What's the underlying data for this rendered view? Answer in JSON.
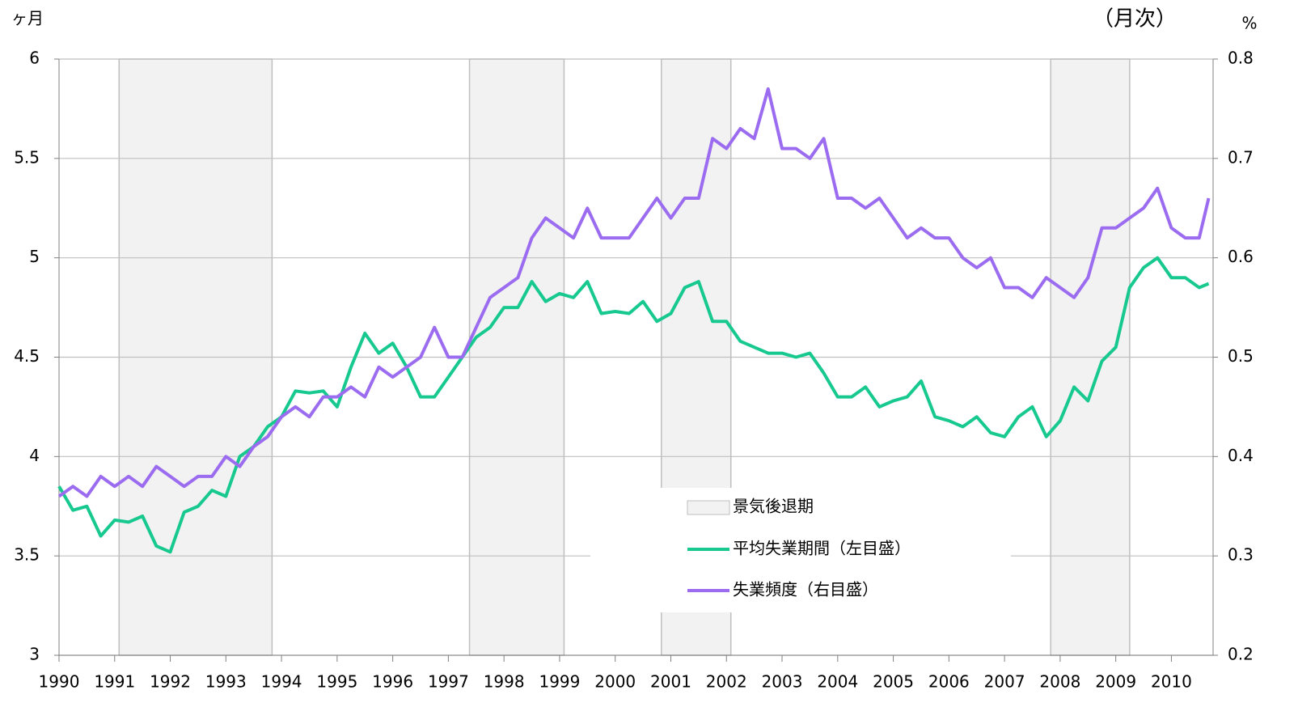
{
  "chart_data": {
    "type": "line",
    "y_unit_label": "ヶ月",
    "frequency_label": "（月次）",
    "y2_unit_label": "%",
    "xlim": [
      1990,
      2010.75
    ],
    "xticks": [
      1990,
      1991,
      1992,
      1993,
      1994,
      1995,
      1996,
      1997,
      1998,
      1999,
      2000,
      2001,
      2002,
      2003,
      2004,
      2005,
      2006,
      2007,
      2008,
      2009,
      2010
    ],
    "ylim": [
      3,
      6
    ],
    "yticks": [
      3,
      3.5,
      4,
      4.5,
      5,
      5.5,
      6
    ],
    "y2lim": [
      0.2,
      0.8
    ],
    "y2ticks": [
      0.2,
      0.3,
      0.4,
      0.5,
      0.6,
      0.7,
      0.8
    ],
    "grid": true,
    "recessions": {
      "name": "景気後退期",
      "color": "#f2f2f2",
      "periods": [
        [
          1991.08,
          1993.83
        ],
        [
          1997.38,
          1999.08
        ],
        [
          2000.83,
          2002.08
        ],
        [
          2007.83,
          2009.25
        ]
      ]
    },
    "x": [
      1990,
      1990.25,
      1990.5,
      1990.75,
      1991,
      1991.25,
      1991.5,
      1991.75,
      1992,
      1992.25,
      1992.5,
      1992.75,
      1993,
      1993.25,
      1993.5,
      1993.75,
      1994,
      1994.25,
      1994.5,
      1994.75,
      1995,
      1995.25,
      1995.5,
      1995.75,
      1996,
      1996.25,
      1996.5,
      1996.75,
      1997,
      1997.25,
      1997.5,
      1997.75,
      1998,
      1998.25,
      1998.5,
      1998.75,
      1999,
      1999.25,
      1999.5,
      1999.75,
      2000,
      2000.25,
      2000.5,
      2000.75,
      2001,
      2001.25,
      2001.5,
      2001.75,
      2002,
      2002.25,
      2002.5,
      2002.75,
      2003,
      2003.25,
      2003.5,
      2003.75,
      2004,
      2004.25,
      2004.5,
      2004.75,
      2005,
      2005.25,
      2005.5,
      2005.75,
      2006,
      2006.25,
      2006.5,
      2006.75,
      2007,
      2007.25,
      2007.5,
      2007.75,
      2008,
      2008.25,
      2008.5,
      2008.75,
      2009,
      2009.25,
      2009.5,
      2009.75,
      2010,
      2010.25,
      2010.5,
      2010.67
    ],
    "series": [
      {
        "name": "平均失業期間（左目盛）",
        "color": "#17c98f",
        "axis": "y",
        "values": [
          3.85,
          3.73,
          3.75,
          3.6,
          3.68,
          3.67,
          3.7,
          3.55,
          3.52,
          3.72,
          3.75,
          3.83,
          3.8,
          4.0,
          4.05,
          4.15,
          4.2,
          4.33,
          4.32,
          4.33,
          4.25,
          4.45,
          4.62,
          4.52,
          4.57,
          4.45,
          4.3,
          4.3,
          4.4,
          4.5,
          4.6,
          4.65,
          4.75,
          4.75,
          4.88,
          4.78,
          4.82,
          4.8,
          4.88,
          4.72,
          4.73,
          4.72,
          4.78,
          4.68,
          4.72,
          4.85,
          4.88,
          4.68,
          4.68,
          4.58,
          4.55,
          4.52,
          4.52,
          4.5,
          4.52,
          4.42,
          4.3,
          4.3,
          4.35,
          4.25,
          4.28,
          4.3,
          4.38,
          4.2,
          4.18,
          4.15,
          4.2,
          4.12,
          4.1,
          4.2,
          4.25,
          4.1,
          4.18,
          4.35,
          4.28,
          4.48,
          4.55,
          4.85,
          4.95,
          5.0,
          4.9,
          4.9,
          4.85,
          4.87
        ]
      },
      {
        "name": "失業頻度（右目盛）",
        "color": "#9b6cf0",
        "axis": "y2",
        "values": [
          0.36,
          0.37,
          0.36,
          0.38,
          0.37,
          0.38,
          0.37,
          0.39,
          0.38,
          0.37,
          0.38,
          0.38,
          0.4,
          0.39,
          0.41,
          0.42,
          0.44,
          0.45,
          0.44,
          0.46,
          0.46,
          0.47,
          0.46,
          0.49,
          0.48,
          0.49,
          0.5,
          0.53,
          0.5,
          0.5,
          0.53,
          0.56,
          0.57,
          0.58,
          0.62,
          0.64,
          0.63,
          0.62,
          0.65,
          0.62,
          0.62,
          0.62,
          0.64,
          0.66,
          0.64,
          0.66,
          0.66,
          0.72,
          0.71,
          0.73,
          0.72,
          0.77,
          0.71,
          0.71,
          0.7,
          0.72,
          0.66,
          0.66,
          0.65,
          0.66,
          0.64,
          0.62,
          0.63,
          0.62,
          0.62,
          0.6,
          0.59,
          0.6,
          0.57,
          0.57,
          0.56,
          0.58,
          0.57,
          0.56,
          0.58,
          0.63,
          0.63,
          0.64,
          0.65,
          0.67,
          0.63,
          0.62,
          0.62,
          0.66
        ]
      }
    ]
  }
}
